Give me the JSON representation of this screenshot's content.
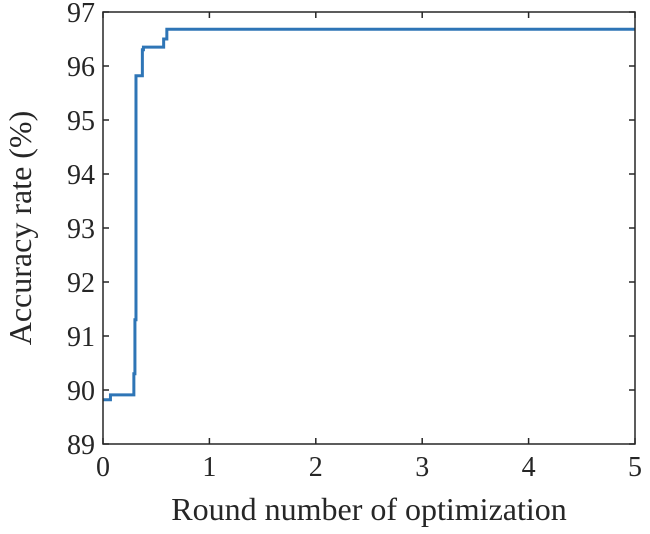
{
  "chart_data": {
    "type": "line",
    "title": "",
    "xlabel": "Round number of optimization",
    "ylabel": "Accuracy rate (%)",
    "xlim": [
      0,
      5
    ],
    "ylim": [
      89,
      97
    ],
    "grid": false,
    "x_ticks": [
      0,
      1,
      2,
      3,
      4,
      5
    ],
    "y_ticks": [
      89,
      90,
      91,
      92,
      93,
      94,
      95,
      96,
      97
    ],
    "colors": {
      "line": "#2E75B6",
      "axis": "#262626"
    },
    "series": [
      {
        "step": true,
        "x": [
          0,
          0.07,
          0.29,
          0.3,
          0.31,
          0.32,
          0.37,
          0.38,
          0.41,
          0.57,
          0.6,
          5
        ],
        "y": [
          89.82,
          89.91,
          90.3,
          91.3,
          95.82,
          95.82,
          96.3,
          96.35,
          96.35,
          96.5,
          96.68,
          96.68
        ]
      }
    ]
  }
}
